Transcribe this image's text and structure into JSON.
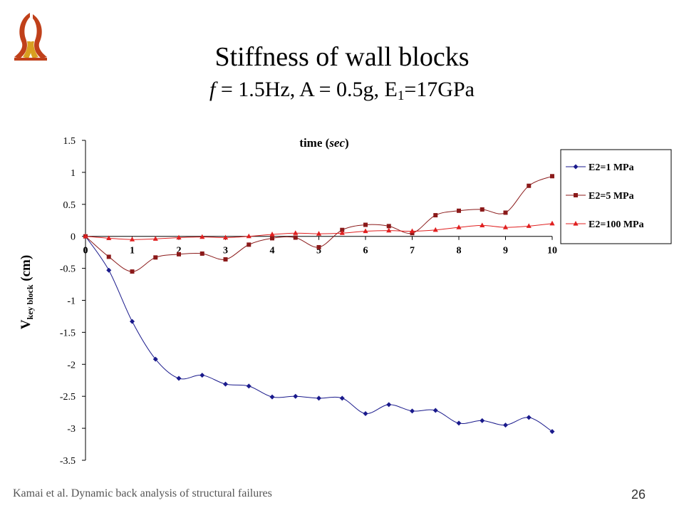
{
  "slide": {
    "title": "Stiffness of wall blocks",
    "subtitle_f": "f",
    "subtitle_rest": " = 1.5Hz, A = 0.5g, E",
    "subtitle_sub": "1",
    "subtitle_end": "=17GPa",
    "footer": "Kamai et al. Dynamic back analysis of structural failures",
    "page_number": "26"
  },
  "chart_data": {
    "type": "line",
    "xlabel_main": "time (",
    "xlabel_ital": "sec",
    "xlabel_end": ")",
    "ylabel_main": "V",
    "ylabel_sub": "key block",
    "ylabel_end": " (cm)",
    "xlim": [
      0,
      10
    ],
    "ylim": [
      -3.5,
      1.5
    ],
    "x_ticks": [
      "0",
      "1",
      "2",
      "3",
      "4",
      "5",
      "6",
      "7",
      "8",
      "9",
      "10"
    ],
    "y_ticks": [
      "1.5",
      "1",
      "0.5",
      "0",
      "-0.5",
      "-1",
      "-1.5",
      "-2",
      "-2.5",
      "-3",
      "-3.5"
    ],
    "grid": false,
    "legend_position": "right",
    "x": [
      0,
      0.5,
      1,
      1.5,
      2,
      2.5,
      3,
      3.5,
      4,
      4.5,
      5,
      5.5,
      6,
      6.5,
      7,
      7.5,
      8,
      8.5,
      9,
      9.5,
      10
    ],
    "series": [
      {
        "name": "E2=1 MPa",
        "color": "#1a1a8c",
        "marker": "diamond",
        "values": [
          0,
          -0.53,
          -1.33,
          -1.92,
          -2.22,
          -2.17,
          -2.31,
          -2.34,
          -2.51,
          -2.5,
          -2.53,
          -2.53,
          -2.77,
          -2.63,
          -2.73,
          -2.72,
          -2.92,
          -2.88,
          -2.95,
          -2.83,
          -3.05
        ]
      },
      {
        "name": "E2=5 MPa",
        "color": "#8b1a1a",
        "marker": "square",
        "values": [
          0,
          -0.32,
          -0.55,
          -0.33,
          -0.28,
          -0.27,
          -0.36,
          -0.13,
          -0.03,
          -0.02,
          -0.17,
          0.1,
          0.18,
          0.16,
          0.05,
          0.33,
          0.4,
          0.42,
          0.37,
          0.79,
          0.94
        ]
      },
      {
        "name": "E2=100 MPa",
        "color": "#e02020",
        "marker": "triangle",
        "values": [
          0,
          -0.03,
          -0.05,
          -0.04,
          -0.02,
          -0.01,
          -0.02,
          0.0,
          0.03,
          0.05,
          0.04,
          0.05,
          0.08,
          0.09,
          0.08,
          0.1,
          0.14,
          0.17,
          0.14,
          0.16,
          0.2
        ]
      }
    ]
  }
}
